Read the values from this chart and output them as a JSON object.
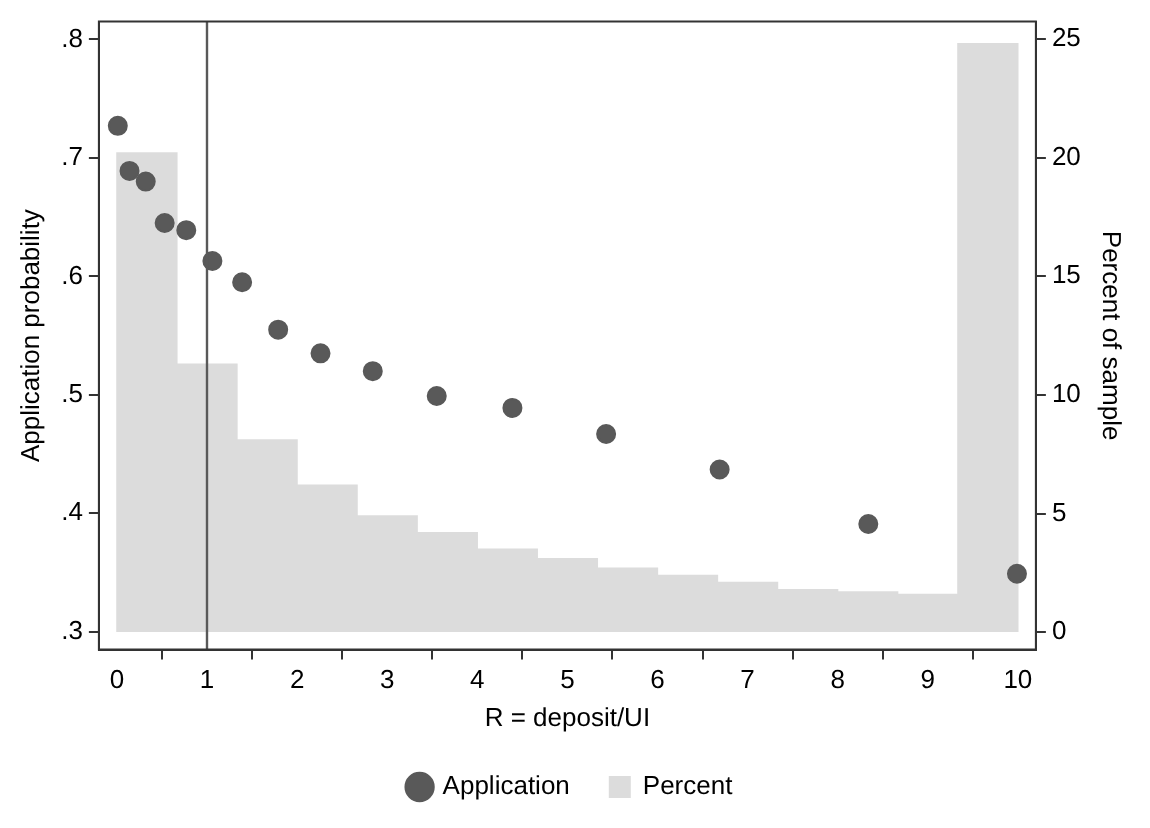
{
  "chart_data": {
    "type": "bar",
    "xlabel": "R = deposit/UI",
    "ylabel": "Application probability",
    "y2label": "Percent of sample",
    "xlim": [
      -0.2,
      10.2
    ],
    "xticks": [
      0,
      1,
      2,
      3,
      4,
      5,
      6,
      7,
      8,
      9,
      10
    ],
    "ylim": [
      0.285,
      0.815
    ],
    "yticks": [
      {
        "value": 0.3,
        "label": ".3"
      },
      {
        "value": 0.4,
        "label": ".4"
      },
      {
        "value": 0.5,
        "label": ".5"
      },
      {
        "value": 0.6,
        "label": ".6"
      },
      {
        "value": 0.7,
        "label": ".7"
      },
      {
        "value": 0.8,
        "label": ".8"
      }
    ],
    "y2lim": [
      -0.73,
      25.73
    ],
    "y2ticks": [
      0,
      5,
      10,
      15,
      20,
      25
    ],
    "series": [
      {
        "name": "Application",
        "type": "scatter",
        "color": "#595959",
        "x": [
          0.01,
          0.14,
          0.32,
          0.53,
          0.77,
          1.06,
          1.39,
          1.79,
          2.26,
          2.84,
          3.55,
          4.39,
          5.43,
          6.69,
          8.34,
          9.99
        ],
        "values": [
          0.727,
          0.689,
          0.68,
          0.645,
          0.639,
          0.613,
          0.595,
          0.555,
          0.535,
          0.52,
          0.499,
          0.489,
          0.467,
          0.437,
          0.391,
          0.349
        ]
      },
      {
        "name": "Percent",
        "axis": "y2",
        "color": "#dcdcdc",
        "x": [
          0.333,
          1,
          1.667,
          2.333,
          3,
          3.667,
          4.333,
          5,
          5.667,
          6.333,
          7,
          7.667,
          8.333,
          9,
          9.667
        ],
        "values": [
          20.2,
          11.3,
          8.1,
          6.2,
          4.9,
          4.2,
          3.5,
          3.1,
          2.7,
          2.4,
          2.1,
          1.8,
          1.7,
          1.6,
          24.8
        ]
      }
    ],
    "ref_lines": [
      {
        "axis": "x",
        "value": 1,
        "color": "#595959"
      }
    ],
    "legend": "bottom",
    "grid": false,
    "marker": "circle"
  }
}
